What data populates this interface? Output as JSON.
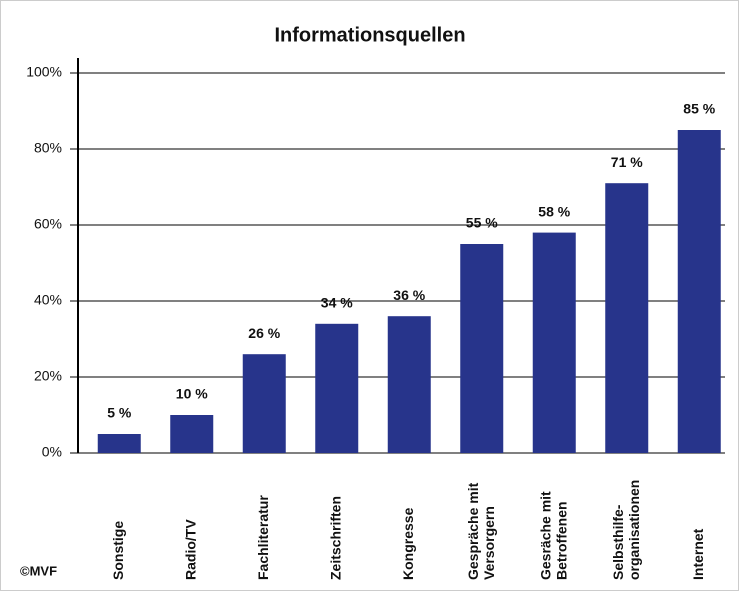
{
  "chart_data": {
    "type": "bar",
    "title": "Informationsquellen",
    "categories": [
      "Sonstige",
      "Radio/TV",
      "Fachliteratur",
      "Zeitschriften",
      "Kongresse",
      "Gespräche mit\nVersorgern",
      "Gesräche mit\nBetroffenen",
      "Selbsthilfe-\norganisationen",
      "Internet"
    ],
    "values": [
      5,
      10,
      26,
      34,
      36,
      55,
      58,
      71,
      85
    ],
    "value_labels": [
      "5 %",
      "10 %",
      "26 %",
      "34 %",
      "36 %",
      "55 %",
      "58 %",
      "71 %",
      "85 %"
    ],
    "color": "#27348b",
    "ylim": [
      0,
      100
    ],
    "yticks": [
      {
        "value": 0,
        "label": "0%"
      },
      {
        "value": 20,
        "label": "20%"
      },
      {
        "value": 40,
        "label": "40%"
      },
      {
        "value": 60,
        "label": "60%"
      },
      {
        "value": 80,
        "label": "80%"
      },
      {
        "value": 100,
        "label": "100%"
      }
    ],
    "grid": true,
    "annotations": [
      "©MVF"
    ]
  }
}
